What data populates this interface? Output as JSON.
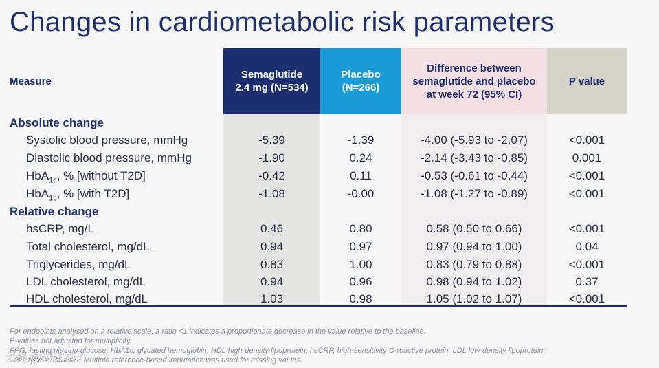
{
  "title": "Changes in cardiometabolic risk parameters",
  "colors": {
    "semaglutide": "#1c2e6e",
    "placebo": "#1a9ad6",
    "difference": "#f3e0e5",
    "pvalue": "#d4d2c9",
    "text": "#1f2f6e"
  },
  "header": {
    "measure": "Measure",
    "semaglutide": "Semaglutide 2.4 mg (N=534)",
    "placebo": "Placebo (N=266)",
    "difference": "Difference between semaglutide and placebo at week 72 (95% CI)",
    "pvalue": "P value"
  },
  "sections": {
    "absolute": "Absolute change",
    "relative": "Relative change"
  },
  "rows": [
    {
      "label": "Systolic blood pressure, mmHg",
      "sema": "-5.39",
      "plac": "-1.39",
      "diff": "-4.00 (-5.93 to -2.07)",
      "p": "<0.001"
    },
    {
      "label": "Diastolic blood pressure, mmHg",
      "sema": "-1.90",
      "plac": "0.24",
      "diff": "-2.14 (-3.43 to -0.85)",
      "p": "0.001"
    },
    {
      "label_main": "HbA",
      "label_sub": "1c",
      "label_rest": ", % [without T2D]",
      "sema": "-0.42",
      "plac": "0.11",
      "diff": "-0.53 (-0.61 to -0.44)",
      "p": "<0.001"
    },
    {
      "label_main": "HbA",
      "label_sub": "1c",
      "label_rest": ", % [with T2D]",
      "sema": "-1.08",
      "plac": "-0.00",
      "diff": "-1.08 (-1.27 to -0.89)",
      "p": "<0.001"
    },
    {
      "label": "hsCRP, mg/L",
      "sema": "0.46",
      "plac": "0.80",
      "diff": "0.58 (0.50 to 0.66)",
      "p": "<0.001"
    },
    {
      "label": "Total cholesterol, mg/dL",
      "sema": "0.94",
      "plac": "0.97",
      "diff": "0.97 (0.94 to 1.00)",
      "p": "0.04"
    },
    {
      "label": "Triglycerides, mg/dL",
      "sema": "0.83",
      "plac": "1.00",
      "diff": "0.83 (0.79 to 0.88)",
      "p": "<0.001"
    },
    {
      "label": "LDL cholesterol, mg/dL",
      "sema": "0.94",
      "plac": "0.96",
      "diff": "0.98 (0.94 to 1.02)",
      "p": "0.37"
    },
    {
      "label": "HDL cholesterol, mg/dL",
      "sema": "1.03",
      "plac": "0.98",
      "diff": "1.05 (1.02 to 1.07)",
      "p": "<0.001"
    }
  ],
  "footnotes": {
    "line1": "For endpoints analysed on a relative scale, a ratio <1 indicates a proportionate decrease in the value relative to the baseline.",
    "line2": "P-values not adjusted for multiplicity.",
    "line3": "FPG, fasting plasma glucose; HbA1c, glycated hemoglobin; HDL high-density lipoprotein; hsCRP, high-sensitivity C-reactive protein; LDL low-density lipoprotein;",
    "line4": "T2D, type 2 diabetes. Multiple reference-based imputation was used for missing values."
  },
  "watermark": "头条 @大数跨境"
}
